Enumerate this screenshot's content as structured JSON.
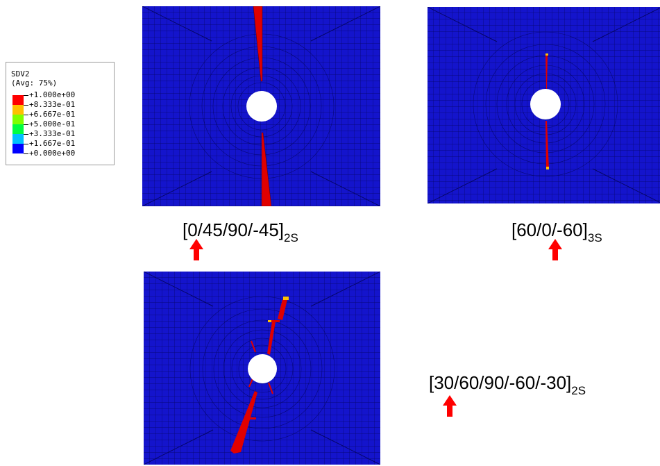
{
  "legend": {
    "title": "SDV2",
    "subtitle": "(Avg: 75%)",
    "levels": [
      "+1.000e+00",
      "+8.333e-01",
      "+6.667e-01",
      "+5.000e-01",
      "+3.333e-01",
      "+1.667e-01",
      "+0.000e+00"
    ],
    "colors": [
      "#ff0000",
      "#ffc000",
      "#7fff00",
      "#00ff40",
      "#00c0ff",
      "#0000ff"
    ]
  },
  "panels": [
    {
      "main": "[0/45/90/-45]",
      "sub": "2S"
    },
    {
      "main": "[60/0/-60]",
      "sub": "3S"
    },
    {
      "main": "[30/60/90/-60/-30]",
      "sub": "2S"
    }
  ],
  "colors": {
    "mesh_blue": "#1414cc",
    "mesh_dark": "#050564",
    "damage_red": "#e00000",
    "arrow_red": "#ff0000"
  }
}
